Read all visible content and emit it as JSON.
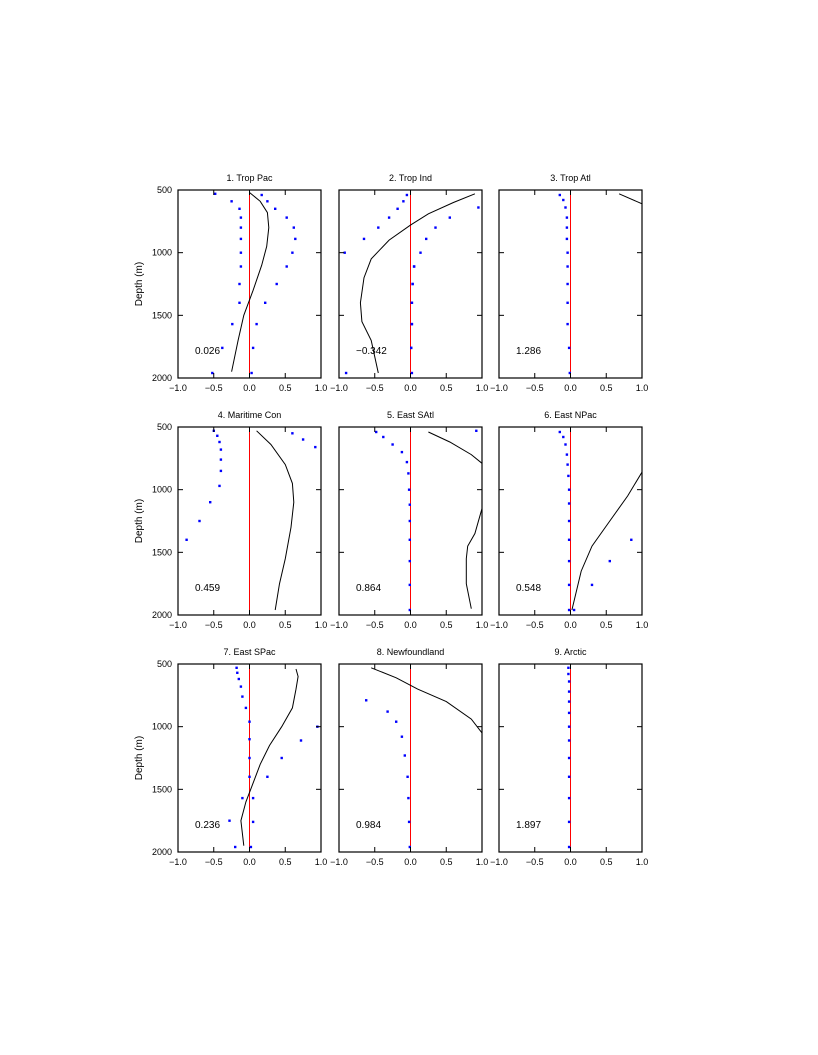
{
  "chart_data": {
    "type": "scatter",
    "panel_grid": [
      3,
      3
    ],
    "ylabel": "Depth (m)",
    "xlim": [
      -1.0,
      1.0
    ],
    "ylim": [
      500,
      2000
    ],
    "y_inverted": true,
    "x_ticks": [
      "−1.0",
      "−0.5",
      "0.0",
      "0.5",
      "1.0"
    ],
    "y_ticks": [
      "500",
      "1000",
      "1500",
      "2000"
    ],
    "colors": {
      "dots": "#0000ff",
      "zero_line": "#ff0000",
      "curve": "#000000"
    },
    "panels": [
      {
        "title": "1. Trop Pac",
        "stat": "0.026",
        "dots_left": [
          [
            -0.48,
            530
          ],
          [
            -0.25,
            590
          ],
          [
            -0.14,
            650
          ],
          [
            -0.12,
            720
          ],
          [
            -0.12,
            800
          ],
          [
            -0.12,
            890
          ],
          [
            -0.12,
            1000
          ],
          [
            -0.12,
            1110
          ],
          [
            -0.14,
            1250
          ],
          [
            -0.14,
            1400
          ],
          [
            -0.24,
            1570
          ],
          [
            -0.38,
            1760
          ],
          [
            -0.52,
            1960
          ]
        ],
        "dots_right": [
          [
            0.17,
            540
          ],
          [
            0.25,
            590
          ],
          [
            0.36,
            650
          ],
          [
            0.52,
            720
          ],
          [
            0.62,
            800
          ],
          [
            0.64,
            890
          ],
          [
            0.6,
            1000
          ],
          [
            0.52,
            1110
          ],
          [
            0.38,
            1250
          ],
          [
            0.22,
            1400
          ],
          [
            0.1,
            1570
          ],
          [
            0.05,
            1760
          ],
          [
            0.03,
            1960
          ]
        ],
        "curve": [
          [
            0.0,
            520
          ],
          [
            0.15,
            590
          ],
          [
            0.25,
            680
          ],
          [
            0.27,
            800
          ],
          [
            0.24,
            950
          ],
          [
            0.17,
            1100
          ],
          [
            0.05,
            1300
          ],
          [
            -0.08,
            1500
          ],
          [
            -0.16,
            1700
          ],
          [
            -0.25,
            1950
          ]
        ]
      },
      {
        "title": "2. Trop Ind",
        "stat": "−0.342",
        "dots_left": [
          [
            -0.05,
            540
          ],
          [
            -0.1,
            590
          ],
          [
            -0.18,
            650
          ],
          [
            -0.3,
            720
          ],
          [
            -0.45,
            800
          ],
          [
            -0.65,
            890
          ],
          [
            -0.92,
            1000
          ],
          [
            0.05,
            1110
          ],
          [
            0.03,
            1250
          ],
          [
            0.02,
            1400
          ],
          [
            0.02,
            1570
          ],
          [
            0.01,
            1760
          ],
          [
            -0.9,
            1960
          ]
        ],
        "dots_right": [
          [
            0.95,
            640
          ],
          [
            0.55,
            720
          ],
          [
            0.35,
            800
          ],
          [
            0.22,
            890
          ],
          [
            0.14,
            1000
          ],
          [
            0.05,
            1110
          ],
          [
            0.03,
            1250
          ],
          [
            0.02,
            1400
          ],
          [
            0.02,
            1570
          ],
          [
            0.01,
            1760
          ],
          [
            0.02,
            1960
          ]
        ],
        "curve": [
          [
            0.9,
            530
          ],
          [
            0.6,
            600
          ],
          [
            0.25,
            690
          ],
          [
            0.0,
            780
          ],
          [
            -0.3,
            900
          ],
          [
            -0.55,
            1050
          ],
          [
            -0.65,
            1200
          ],
          [
            -0.7,
            1400
          ],
          [
            -0.68,
            1550
          ],
          [
            -0.55,
            1700
          ],
          [
            -0.45,
            1960
          ]
        ]
      },
      {
        "title": "3. Trop Atl",
        "stat": "1.286",
        "dots_left": [
          [
            -0.15,
            540
          ],
          [
            -0.1,
            580
          ],
          [
            -0.07,
            640
          ],
          [
            -0.05,
            720
          ],
          [
            -0.05,
            800
          ],
          [
            -0.05,
            890
          ],
          [
            -0.04,
            1000
          ],
          [
            -0.04,
            1110
          ],
          [
            -0.04,
            1250
          ],
          [
            -0.04,
            1400
          ],
          [
            -0.04,
            1570
          ],
          [
            -0.02,
            1760
          ],
          [
            -0.01,
            1960
          ]
        ],
        "dots_right": [],
        "curve": [
          [
            0.68,
            530
          ],
          [
            1.0,
            610
          ]
        ]
      },
      {
        "title": "4. Maritime Con",
        "stat": "0.459",
        "dots_left": [
          [
            -0.5,
            530
          ],
          [
            -0.45,
            570
          ],
          [
            -0.42,
            620
          ],
          [
            -0.4,
            680
          ],
          [
            -0.4,
            760
          ],
          [
            -0.4,
            850
          ],
          [
            -0.42,
            970
          ],
          [
            -0.55,
            1100
          ],
          [
            -0.7,
            1250
          ],
          [
            -0.88,
            1400
          ]
        ],
        "dots_right": [
          [
            0.6,
            550
          ],
          [
            0.75,
            600
          ],
          [
            0.92,
            660
          ]
        ],
        "curve": [
          [
            0.1,
            530
          ],
          [
            0.3,
            640
          ],
          [
            0.5,
            800
          ],
          [
            0.6,
            950
          ],
          [
            0.62,
            1100
          ],
          [
            0.58,
            1300
          ],
          [
            0.5,
            1550
          ],
          [
            0.42,
            1750
          ],
          [
            0.36,
            1960
          ]
        ]
      },
      {
        "title": "5. East SAtl",
        "stat": "0.864",
        "dots_left": [
          [
            -0.48,
            540
          ],
          [
            -0.38,
            580
          ],
          [
            -0.25,
            640
          ],
          [
            -0.12,
            700
          ],
          [
            -0.05,
            780
          ],
          [
            -0.03,
            870
          ],
          [
            -0.02,
            1000
          ],
          [
            -0.01,
            1120
          ],
          [
            -0.01,
            1250
          ],
          [
            -0.01,
            1400
          ],
          [
            -0.01,
            1570
          ],
          [
            -0.01,
            1760
          ],
          [
            -0.01,
            1960
          ]
        ],
        "dots_right": [
          [
            0.92,
            530
          ]
        ],
        "curve": [
          [
            0.25,
            540
          ],
          [
            0.55,
            620
          ],
          [
            0.85,
            720
          ],
          [
            1.0,
            790
          ],
          [
            1.0,
            1150
          ],
          [
            0.9,
            1350
          ],
          [
            0.8,
            1450
          ],
          [
            0.78,
            1550
          ],
          [
            0.78,
            1750
          ],
          [
            0.85,
            1950
          ]
        ]
      },
      {
        "title": "6. East NPac",
        "stat": "0.548",
        "dots_left": [
          [
            -0.15,
            540
          ],
          [
            -0.1,
            580
          ],
          [
            -0.07,
            640
          ],
          [
            -0.05,
            720
          ],
          [
            -0.04,
            800
          ],
          [
            -0.03,
            890
          ],
          [
            -0.02,
            1000
          ],
          [
            -0.02,
            1110
          ],
          [
            -0.02,
            1250
          ],
          [
            -0.02,
            1400
          ],
          [
            -0.02,
            1570
          ],
          [
            -0.02,
            1760
          ],
          [
            -0.02,
            1960
          ]
        ],
        "dots_right": [
          [
            0.85,
            1400
          ],
          [
            0.55,
            1570
          ],
          [
            0.3,
            1760
          ],
          [
            0.05,
            1960
          ]
        ],
        "curve": [
          [
            1.0,
            860
          ],
          [
            0.8,
            1050
          ],
          [
            0.55,
            1250
          ],
          [
            0.3,
            1450
          ],
          [
            0.15,
            1650
          ],
          [
            0.02,
            1960
          ]
        ]
      },
      {
        "title": "7. East SPac",
        "stat": "0.236",
        "dots_left": [
          [
            -0.18,
            530
          ],
          [
            -0.17,
            570
          ],
          [
            -0.15,
            620
          ],
          [
            -0.12,
            680
          ],
          [
            -0.1,
            760
          ],
          [
            -0.05,
            850
          ],
          [
            0.0,
            960
          ],
          [
            0.0,
            1100
          ],
          [
            0.0,
            1250
          ],
          [
            0.0,
            1400
          ],
          [
            -0.1,
            1570
          ],
          [
            -0.28,
            1750
          ],
          [
            -0.2,
            1960
          ]
        ],
        "dots_right": [
          [
            0.95,
            1000
          ],
          [
            0.72,
            1110
          ],
          [
            0.45,
            1250
          ],
          [
            0.25,
            1400
          ],
          [
            0.05,
            1570
          ],
          [
            0.05,
            1760
          ],
          [
            0.02,
            1960
          ]
        ],
        "curve": [
          [
            0.65,
            540
          ],
          [
            0.68,
            600
          ],
          [
            0.65,
            700
          ],
          [
            0.6,
            850
          ],
          [
            0.45,
            1000
          ],
          [
            0.28,
            1150
          ],
          [
            0.15,
            1300
          ],
          [
            0.05,
            1450
          ],
          [
            -0.05,
            1600
          ],
          [
            -0.12,
            1750
          ],
          [
            -0.08,
            1950
          ]
        ]
      },
      {
        "title": "8. Newfoundland",
        "stat": "0.984",
        "dots_left": [
          [
            -0.62,
            790
          ],
          [
            -0.32,
            880
          ],
          [
            -0.2,
            960
          ],
          [
            -0.12,
            1080
          ],
          [
            -0.08,
            1230
          ],
          [
            -0.04,
            1400
          ],
          [
            -0.03,
            1570
          ],
          [
            -0.02,
            1760
          ],
          [
            -0.01,
            1960
          ]
        ],
        "dots_right": [],
        "curve": [
          [
            -0.55,
            530
          ],
          [
            -0.2,
            610
          ],
          [
            0.1,
            700
          ],
          [
            0.5,
            800
          ],
          [
            0.85,
            940
          ],
          [
            1.0,
            1050
          ]
        ]
      },
      {
        "title": "9. Arctic",
        "stat": "1.897",
        "dots_left": [
          [
            -0.03,
            530
          ],
          [
            -0.03,
            580
          ],
          [
            -0.02,
            640
          ],
          [
            -0.02,
            720
          ],
          [
            -0.02,
            800
          ],
          [
            -0.02,
            890
          ],
          [
            -0.02,
            1000
          ],
          [
            -0.02,
            1110
          ],
          [
            -0.02,
            1250
          ],
          [
            -0.02,
            1400
          ],
          [
            -0.02,
            1570
          ],
          [
            -0.02,
            1760
          ],
          [
            -0.02,
            1960
          ]
        ],
        "dots_right": [],
        "curve": []
      }
    ]
  }
}
